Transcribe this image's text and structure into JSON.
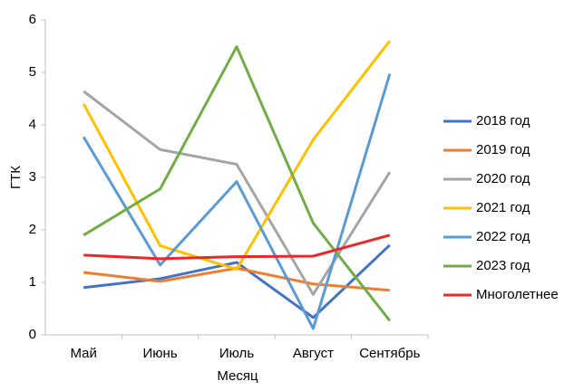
{
  "chart_data": {
    "type": "line",
    "x_label": "Месяц",
    "y_label": "ГТК",
    "categories": [
      "Май",
      "Июнь",
      "Июль",
      "Август",
      "Сентябрь"
    ],
    "series": [
      {
        "name": "2018 год",
        "color": "#4472c4",
        "values": [
          0.9,
          1.07,
          1.38,
          0.33,
          1.71
        ]
      },
      {
        "name": "2019 год",
        "color": "#ed7d31",
        "values": [
          1.19,
          1.02,
          1.27,
          0.97,
          0.85
        ]
      },
      {
        "name": "2020 год",
        "color": "#a5a5a5",
        "values": [
          4.64,
          3.53,
          3.25,
          0.77,
          3.1
        ]
      },
      {
        "name": "2021 год",
        "color": "#ffc000",
        "values": [
          4.4,
          1.7,
          1.25,
          3.72,
          5.6
        ]
      },
      {
        "name": "2022 год",
        "color": "#5b9bd5",
        "values": [
          3.77,
          1.33,
          2.92,
          0.12,
          4.97
        ]
      },
      {
        "name": "2023 год",
        "color": "#70ad47",
        "values": [
          1.9,
          2.78,
          5.49,
          2.13,
          0.27
        ]
      },
      {
        "name": "Многолетнее",
        "color": "#e8282b",
        "values": [
          1.52,
          1.45,
          1.49,
          1.5,
          1.9
        ]
      }
    ],
    "ylim": [
      0,
      6
    ],
    "yticks": [
      0,
      1,
      2,
      3,
      4,
      5,
      6
    ],
    "grid": false,
    "legend": "right"
  }
}
